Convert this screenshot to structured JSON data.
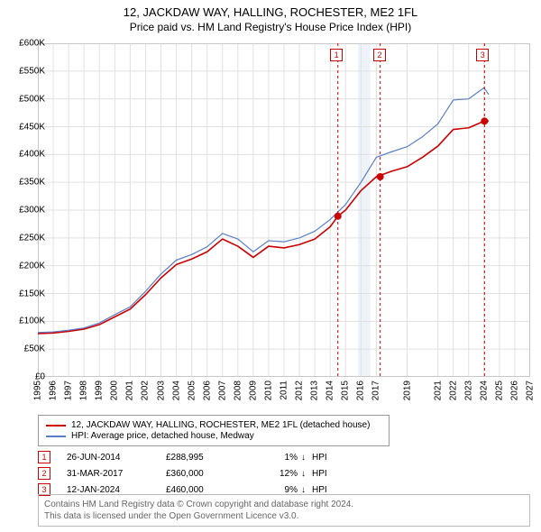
{
  "title1": "12, JACKDAW WAY, HALLING, ROCHESTER, ME2 1FL",
  "title2": "Price paid vs. HM Land Registry's House Price Index (HPI)",
  "chart": {
    "type": "line",
    "x_min": 1995,
    "x_max": 2027,
    "y_min": 0,
    "y_max": 600000,
    "y_ticks": [
      0,
      50000,
      100000,
      150000,
      200000,
      250000,
      300000,
      350000,
      400000,
      450000,
      500000,
      550000,
      600000
    ],
    "y_tick_labels": [
      "£0",
      "£50K",
      "£100K",
      "£150K",
      "£200K",
      "£250K",
      "£300K",
      "£350K",
      "£400K",
      "£450K",
      "£500K",
      "£550K",
      "£600K"
    ],
    "x_ticks": [
      1995,
      1996,
      1997,
      1998,
      1999,
      2000,
      2001,
      2002,
      2003,
      2004,
      2005,
      2006,
      2007,
      2008,
      2009,
      2010,
      2011,
      2012,
      2013,
      2014,
      2015,
      2016,
      2017,
      2019,
      2021,
      2022,
      2023,
      2024,
      2025,
      2026,
      2027
    ],
    "grid_color": "#e0e0e0",
    "major_grid_color": "#c8c8c8",
    "background_color": "#ffffff",
    "plot_bg": "#ffffff",
    "highlight_band": {
      "x_start": 2015.8,
      "x_end": 2016.6,
      "color": "#eef2f9"
    },
    "series": [
      {
        "name": "property",
        "color": "#cc0000",
        "width": 1.6,
        "data": [
          [
            1995,
            78000
          ],
          [
            1996,
            79000
          ],
          [
            1997,
            82000
          ],
          [
            1998,
            86000
          ],
          [
            1999,
            94000
          ],
          [
            2000,
            108000
          ],
          [
            2001,
            122000
          ],
          [
            2002,
            148000
          ],
          [
            2003,
            178000
          ],
          [
            2004,
            202000
          ],
          [
            2005,
            212000
          ],
          [
            2006,
            225000
          ],
          [
            2007,
            248000
          ],
          [
            2008,
            235000
          ],
          [
            2009,
            215000
          ],
          [
            2010,
            235000
          ],
          [
            2011,
            232000
          ],
          [
            2012,
            238000
          ],
          [
            2013,
            248000
          ],
          [
            2014,
            270000
          ],
          [
            2014.5,
            288995
          ],
          [
            2015,
            300000
          ],
          [
            2016,
            335000
          ],
          [
            2017,
            360000
          ],
          [
            2018,
            370000
          ],
          [
            2019,
            378000
          ],
          [
            2020,
            395000
          ],
          [
            2021,
            415000
          ],
          [
            2022,
            445000
          ],
          [
            2023,
            448000
          ],
          [
            2024,
            460000
          ],
          [
            2024.3,
            460000
          ]
        ]
      },
      {
        "name": "hpi",
        "color": "#5b7fc7",
        "width": 1.2,
        "data": [
          [
            1995,
            80000
          ],
          [
            1996,
            81000
          ],
          [
            1997,
            84000
          ],
          [
            1998,
            88000
          ],
          [
            1999,
            97000
          ],
          [
            2000,
            112000
          ],
          [
            2001,
            126000
          ],
          [
            2002,
            154000
          ],
          [
            2003,
            185000
          ],
          [
            2004,
            210000
          ],
          [
            2005,
            220000
          ],
          [
            2006,
            234000
          ],
          [
            2007,
            258000
          ],
          [
            2008,
            248000
          ],
          [
            2009,
            225000
          ],
          [
            2010,
            245000
          ],
          [
            2011,
            243000
          ],
          [
            2012,
            250000
          ],
          [
            2013,
            262000
          ],
          [
            2014,
            283000
          ],
          [
            2015,
            310000
          ],
          [
            2016,
            350000
          ],
          [
            2017,
            395000
          ],
          [
            2018,
            405000
          ],
          [
            2019,
            414000
          ],
          [
            2020,
            432000
          ],
          [
            2021,
            455000
          ],
          [
            2022,
            498000
          ],
          [
            2023,
            500000
          ],
          [
            2024,
            520000
          ],
          [
            2024.3,
            508000
          ]
        ]
      }
    ],
    "sale_markers": [
      {
        "num": "1",
        "x": 2014.5,
        "y": 288995,
        "label_x": 2014.0,
        "label_y_top": true
      },
      {
        "num": "2",
        "x": 2017.25,
        "y": 360000,
        "label_x": 2016.8,
        "label_y_top": true
      },
      {
        "num": "3",
        "x": 2024.03,
        "y": 460000,
        "label_x": 2023.5,
        "label_y_top": true
      }
    ],
    "marker_line_color": "#cc0000",
    "marker_line_dash": "3,3",
    "marker_dot_color": "#cc0000",
    "marker_dot_radius": 4
  },
  "legend": {
    "items": [
      {
        "color": "#cc0000",
        "label": "12, JACKDAW WAY, HALLING, ROCHESTER, ME2 1FL (detached house)"
      },
      {
        "color": "#5b7fc7",
        "label": "HPI: Average price, detached house, Medway"
      }
    ]
  },
  "sales": [
    {
      "num": "1",
      "date": "26-JUN-2014",
      "price": "£288,995",
      "pct": "1%",
      "arrow": "↓",
      "hpi": "HPI"
    },
    {
      "num": "2",
      "date": "31-MAR-2017",
      "price": "£360,000",
      "pct": "12%",
      "arrow": "↓",
      "hpi": "HPI"
    },
    {
      "num": "3",
      "date": "12-JAN-2024",
      "price": "£460,000",
      "pct": "9%",
      "arrow": "↓",
      "hpi": "HPI"
    }
  ],
  "footer_line1": "Contains HM Land Registry data © Crown copyright and database right 2024.",
  "footer_line2": "This data is licensed under the Open Government Licence v3.0."
}
